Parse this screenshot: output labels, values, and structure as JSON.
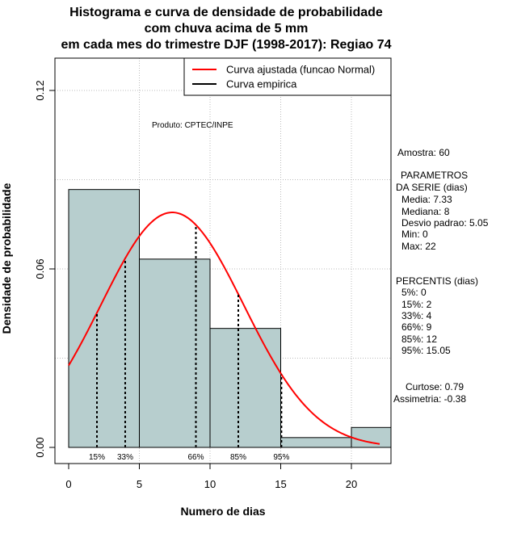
{
  "chart_data": {
    "type": "histogram",
    "title_lines": [
      "Histograma e curva de densidade de probabilidade",
      "com chuva acima de 5 mm",
      "em cada mes do trimestre DJF (1998-2017): Regiao 74"
    ],
    "xlabel": "Numero de dias",
    "ylabel": "Densidade de probabilidade",
    "xlim": [
      -1,
      23
    ],
    "ylim": [
      -0.004,
      0.13
    ],
    "x_ticks": [
      0,
      5,
      10,
      15,
      20
    ],
    "y_ticks": [
      0.0,
      0.06,
      0.12
    ],
    "y_tick_labels": [
      "0.00",
      "0.06",
      "0.12"
    ],
    "bins": [
      {
        "start": 0,
        "end": 5,
        "density": 0.0867
      },
      {
        "start": 5,
        "end": 10,
        "density": 0.0633
      },
      {
        "start": 10,
        "end": 15,
        "density": 0.04
      },
      {
        "start": 15,
        "end": 20,
        "density": 0.0033
      },
      {
        "start": 20,
        "end": 25,
        "density": 0.0067
      }
    ],
    "fitted_curve": {
      "mean": 7.33,
      "sd": 5.05,
      "x_range": [
        0,
        22
      ],
      "color": "#ff0000"
    },
    "bar_color": "#b7cece",
    "percentiles": [
      {
        "label": "15%",
        "x": 2
      },
      {
        "label": "33%",
        "x": 4
      },
      {
        "label": "66%",
        "x": 9
      },
      {
        "label": "85%",
        "x": 12
      },
      {
        "label": "95%",
        "x": 15.05
      }
    ],
    "legend": {
      "position": "top-right",
      "entries": [
        {
          "label": "Curva ajustada (funcao Normal)",
          "color": "#ff0000"
        },
        {
          "label": "Curva empirica",
          "color": "#000000"
        }
      ]
    },
    "annotation": "Produto: CPTEC/INPE"
  },
  "stats": {
    "amostra": "Amostra: 60",
    "param_title_1": "PARAMETROS",
    "param_title_2": "DA SERIE (dias)",
    "media": "Media: 7.33",
    "mediana": "Mediana: 8",
    "desvio": "Desvio padrao: 5.05",
    "min": "Min: 0",
    "max": "Max: 22",
    "perc_title": "PERCENTIS (dias)",
    "p5": "5%: 0",
    "p15": "15%: 2",
    "p33": "33%: 4",
    "p66": "66%: 9",
    "p85": "85%: 12",
    "p95": "95%: 15.05",
    "curtose": "Curtose: 0.79",
    "assimetria": "Assimetria: -0.38"
  }
}
